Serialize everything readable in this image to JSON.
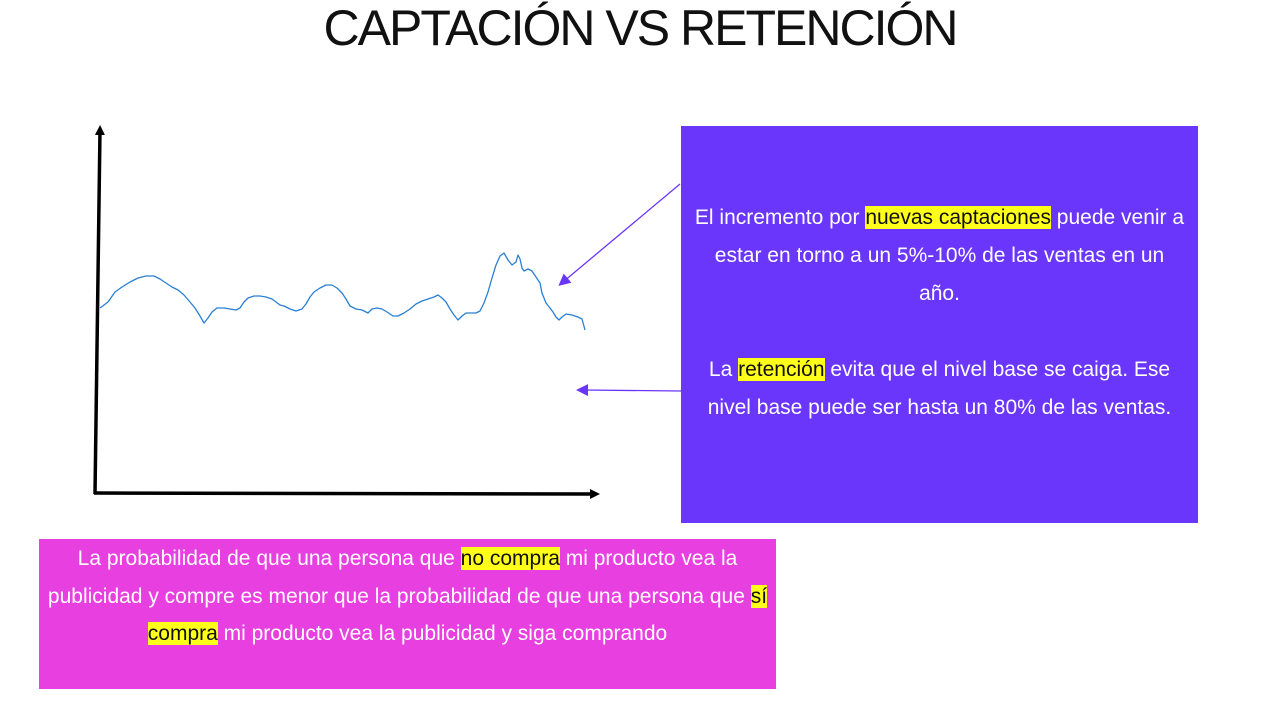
{
  "title": "CAPTACIÓN VS RETENCIÓN",
  "info_box": {
    "p1_before": "El incremento por ",
    "p1_highlight": "nuevas captaciones",
    "p1_after": " puede venir a estar en torno a un 5%-10% de las ventas en un año.",
    "p2_before": "La ",
    "p2_highlight": "retención",
    "p2_after": " evita que el nivel base se caiga. Ese nivel base puede ser hasta un 80% de las ventas.",
    "background": "#6a36fc"
  },
  "pink_box": {
    "part1": "La probabilidad de que una persona que ",
    "hl1": "no compra",
    "part2": " mi producto vea la publicidad y compre es menor que la probabilidad de que una persona que ",
    "hl2": "sí compra",
    "part3": " mi producto vea la publicidad y siga comprando",
    "background": "#e83fe0"
  },
  "colors": {
    "highlight": "#ffff1a",
    "line": "#2b7fd4",
    "arrow": "#6a36fc"
  }
}
